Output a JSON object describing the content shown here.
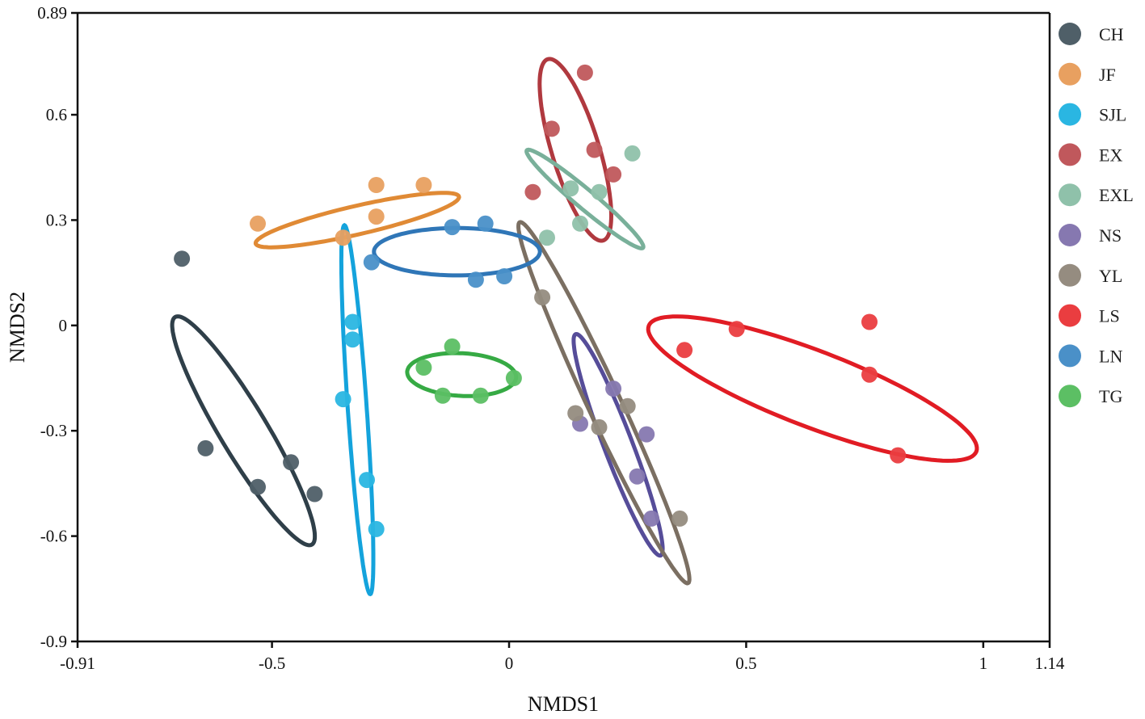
{
  "chart_data": {
    "type": "scatter",
    "title": "",
    "xlabel": "NMDS1",
    "ylabel": "NMDS2",
    "xlim": [
      -0.91,
      1.14
    ],
    "ylim": [
      -0.9,
      0.89
    ],
    "xticks": [
      {
        "value": -0.91,
        "label": "-0.91"
      },
      {
        "value": -0.5,
        "label": "-0.5"
      },
      {
        "value": 0,
        "label": "0"
      },
      {
        "value": 0.5,
        "label": "0.5"
      },
      {
        "value": 1,
        "label": "1"
      },
      {
        "value": 1.14,
        "label": "1.14"
      }
    ],
    "yticks": [
      {
        "value": 0.89,
        "label": "0.89"
      },
      {
        "value": 0.6,
        "label": "0.6"
      },
      {
        "value": 0.3,
        "label": "0.3"
      },
      {
        "value": 0,
        "label": "0"
      },
      {
        "value": -0.3,
        "label": "-0.3"
      },
      {
        "value": -0.6,
        "label": "-0.6"
      },
      {
        "value": -0.9,
        "label": "-0.9"
      }
    ],
    "grid": false,
    "legend_position": "right",
    "series": [
      {
        "name": "CH",
        "color": "#4f5f68",
        "ellipse_color": "#2f3f49",
        "points": [
          [
            -0.69,
            0.19
          ],
          [
            -0.64,
            -0.35
          ],
          [
            -0.53,
            -0.46
          ],
          [
            -0.46,
            -0.39
          ],
          [
            -0.41,
            -0.48
          ]
        ],
        "ellipse": {
          "cx": -0.56,
          "cy": -0.3,
          "rx": 0.56,
          "ry": 0.1,
          "angle_deg": -59
        }
      },
      {
        "name": "JF",
        "color": "#e8a060",
        "ellipse_color": "#e08a35",
        "points": [
          [
            -0.53,
            0.29
          ],
          [
            -0.35,
            0.25
          ],
          [
            -0.28,
            0.31
          ],
          [
            -0.28,
            0.4
          ],
          [
            -0.18,
            0.4
          ]
        ],
        "ellipse": {
          "cx": -0.32,
          "cy": 0.3,
          "rx": 0.44,
          "ry": 0.06,
          "angle_deg": 13
        }
      },
      {
        "name": "SJL",
        "color": "#2ab6e2",
        "ellipse_color": "#14a3dc",
        "points": [
          [
            -0.33,
            0.01
          ],
          [
            -0.33,
            -0.04
          ],
          [
            -0.35,
            -0.21
          ],
          [
            -0.3,
            -0.44
          ],
          [
            -0.28,
            -0.58
          ]
        ],
        "ellipse": {
          "cx": -0.32,
          "cy": -0.24,
          "rx": 0.78,
          "ry": 0.04,
          "angle_deg": -86
        }
      },
      {
        "name": "EX",
        "color": "#c0585c",
        "ellipse_color": "#b0393f",
        "points": [
          [
            0.16,
            0.72
          ],
          [
            0.09,
            0.56
          ],
          [
            0.18,
            0.5
          ],
          [
            0.22,
            0.43
          ],
          [
            0.05,
            0.38
          ]
        ],
        "ellipse": {
          "cx": 0.14,
          "cy": 0.5,
          "rx": 0.4,
          "ry": 0.1,
          "angle_deg": -73
        }
      },
      {
        "name": "EXL",
        "color": "#8fc1aa",
        "ellipse_color": "#79b09a",
        "points": [
          [
            0.26,
            0.49
          ],
          [
            0.13,
            0.39
          ],
          [
            0.19,
            0.38
          ],
          [
            0.15,
            0.29
          ],
          [
            0.08,
            0.25
          ]
        ],
        "ellipse": {
          "cx": 0.16,
          "cy": 0.36,
          "rx": 0.32,
          "ry": 0.04,
          "angle_deg": -40
        }
      },
      {
        "name": "NS",
        "color": "#8678b0",
        "ellipse_color": "#564d99",
        "points": [
          [
            0.22,
            -0.18
          ],
          [
            0.15,
            -0.28
          ],
          [
            0.29,
            -0.31
          ],
          [
            0.27,
            -0.43
          ],
          [
            0.3,
            -0.55
          ]
        ],
        "ellipse": {
          "cx": 0.23,
          "cy": -0.34,
          "rx": 0.5,
          "ry": 0.06,
          "angle_deg": -69
        }
      },
      {
        "name": "YL",
        "color": "#958c80",
        "ellipse_color": "#7b6f62",
        "points": [
          [
            0.07,
            0.08
          ],
          [
            0.14,
            -0.25
          ],
          [
            0.25,
            -0.23
          ],
          [
            0.19,
            -0.29
          ],
          [
            0.36,
            -0.55
          ]
        ],
        "ellipse": {
          "cx": 0.2,
          "cy": -0.22,
          "rx": 0.84,
          "ry": 0.07,
          "angle_deg": -65
        }
      },
      {
        "name": "LS",
        "color": "#ea3d40",
        "ellipse_color": "#e11c24",
        "points": [
          [
            0.37,
            -0.07
          ],
          [
            0.48,
            -0.01
          ],
          [
            0.76,
            0.01
          ],
          [
            0.76,
            -0.14
          ],
          [
            0.82,
            -0.37
          ]
        ],
        "ellipse": {
          "cx": 0.64,
          "cy": -0.18,
          "rx": 0.74,
          "ry": 0.16,
          "angle_deg": -21
        }
      },
      {
        "name": "LN",
        "color": "#4a90c8",
        "ellipse_color": "#2f76b7",
        "points": [
          [
            -0.29,
            0.18
          ],
          [
            -0.12,
            0.28
          ],
          [
            -0.05,
            0.29
          ],
          [
            -0.07,
            0.13
          ],
          [
            -0.01,
            0.14
          ]
        ],
        "ellipse": {
          "cx": -0.11,
          "cy": 0.21,
          "rx": 0.35,
          "ry": 0.1,
          "angle_deg": 0
        }
      },
      {
        "name": "TG",
        "color": "#5cbf64",
        "ellipse_color": "#36aa44",
        "points": [
          [
            -0.12,
            -0.06
          ],
          [
            -0.18,
            -0.12
          ],
          [
            -0.14,
            -0.2
          ],
          [
            -0.06,
            -0.2
          ],
          [
            0.01,
            -0.15
          ]
        ],
        "ellipse": {
          "cx": -0.1,
          "cy": -0.14,
          "rx": 0.23,
          "ry": 0.09,
          "angle_deg": -3
        }
      }
    ]
  }
}
